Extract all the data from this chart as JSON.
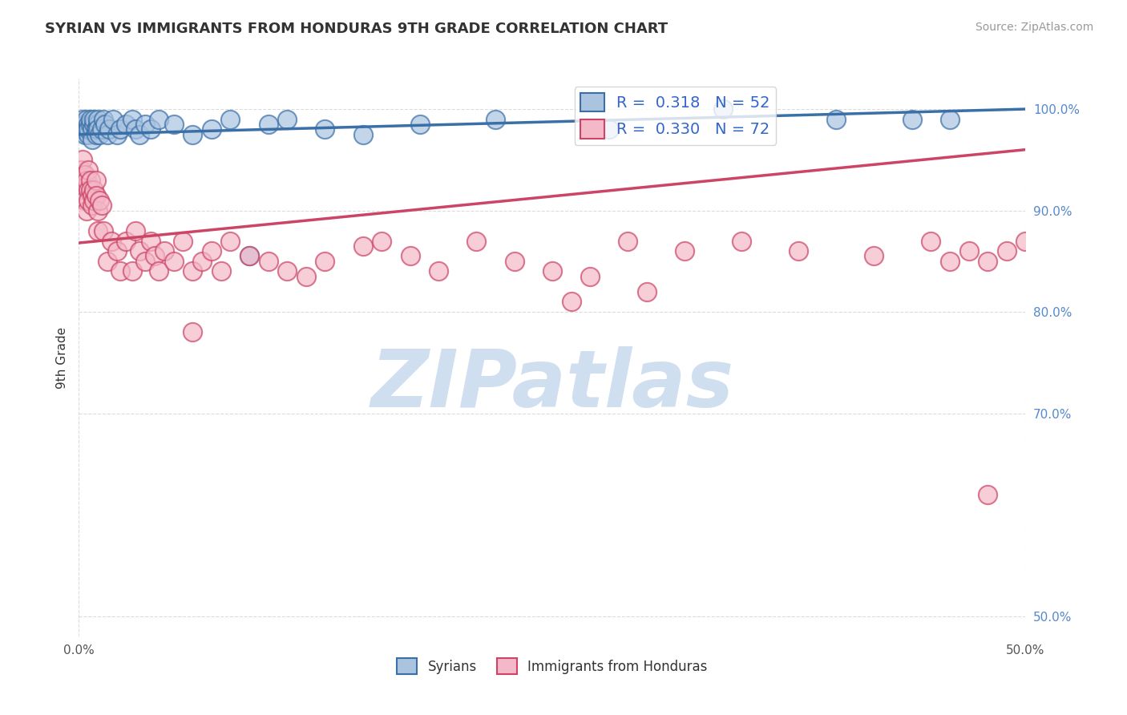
{
  "title": "SYRIAN VS IMMIGRANTS FROM HONDURAS 9TH GRADE CORRELATION CHART",
  "source_text": "Source: ZipAtlas.com",
  "ylabel": "9th Grade",
  "xlim": [
    0.0,
    0.5
  ],
  "ylim": [
    0.48,
    1.03
  ],
  "xtick_labels": [
    "0.0%",
    "50.0%"
  ],
  "xtick_positions": [
    0.0,
    0.5
  ],
  "ytick_labels": [
    "50.0%",
    "70.0%",
    "80.0%",
    "90.0%",
    "100.0%"
  ],
  "ytick_positions": [
    0.5,
    0.7,
    0.8,
    0.9,
    1.0
  ],
  "blue_R": "0.318",
  "blue_N": 52,
  "pink_R": "0.330",
  "pink_N": 72,
  "blue_color": "#aac4e0",
  "pink_color": "#f4b8c8",
  "blue_line_color": "#3a6fa8",
  "pink_line_color": "#cc4466",
  "watermark_text": "ZIPatlas",
  "watermark_color": "#d0dff0",
  "legend_label_blue": "Syrians",
  "legend_label_pink": "Immigrants from Honduras",
  "blue_points_x": [
    0.001,
    0.002,
    0.003,
    0.003,
    0.004,
    0.004,
    0.005,
    0.005,
    0.005,
    0.006,
    0.006,
    0.007,
    0.007,
    0.008,
    0.008,
    0.009,
    0.009,
    0.01,
    0.01,
    0.01,
    0.011,
    0.012,
    0.013,
    0.014,
    0.015,
    0.016,
    0.018,
    0.02,
    0.022,
    0.025,
    0.028,
    0.03,
    0.032,
    0.035,
    0.038,
    0.042,
    0.05,
    0.06,
    0.07,
    0.08,
    0.09,
    0.1,
    0.11,
    0.13,
    0.15,
    0.18,
    0.22,
    0.28,
    0.34,
    0.4,
    0.44,
    0.46
  ],
  "blue_points_y": [
    0.98,
    0.99,
    0.985,
    0.975,
    0.98,
    0.99,
    0.985,
    0.975,
    0.98,
    0.985,
    0.99,
    0.98,
    0.97,
    0.985,
    0.99,
    0.98,
    0.975,
    0.985,
    0.99,
    0.98,
    0.975,
    0.98,
    0.99,
    0.985,
    0.975,
    0.98,
    0.99,
    0.975,
    0.98,
    0.985,
    0.99,
    0.98,
    0.975,
    0.985,
    0.98,
    0.99,
    0.985,
    0.975,
    0.98,
    0.99,
    0.855,
    0.985,
    0.99,
    0.98,
    0.975,
    0.985,
    0.99,
    0.98,
    1.0,
    0.99,
    0.99,
    0.99
  ],
  "pink_points_x": [
    0.001,
    0.002,
    0.002,
    0.003,
    0.003,
    0.004,
    0.004,
    0.004,
    0.005,
    0.005,
    0.005,
    0.006,
    0.006,
    0.007,
    0.007,
    0.008,
    0.008,
    0.009,
    0.009,
    0.01,
    0.01,
    0.011,
    0.012,
    0.013,
    0.015,
    0.017,
    0.02,
    0.022,
    0.025,
    0.028,
    0.03,
    0.032,
    0.035,
    0.038,
    0.04,
    0.042,
    0.045,
    0.05,
    0.055,
    0.06,
    0.065,
    0.07,
    0.075,
    0.08,
    0.09,
    0.1,
    0.11,
    0.12,
    0.13,
    0.15,
    0.16,
    0.175,
    0.19,
    0.21,
    0.23,
    0.25,
    0.27,
    0.29,
    0.32,
    0.35,
    0.38,
    0.42,
    0.45,
    0.46,
    0.47,
    0.48,
    0.49,
    0.5,
    0.26,
    0.3,
    0.06,
    0.48
  ],
  "pink_points_y": [
    0.94,
    0.92,
    0.95,
    0.935,
    0.91,
    0.925,
    0.9,
    0.93,
    0.92,
    0.94,
    0.91,
    0.93,
    0.92,
    0.915,
    0.905,
    0.91,
    0.92,
    0.93,
    0.915,
    0.88,
    0.9,
    0.91,
    0.905,
    0.88,
    0.85,
    0.87,
    0.86,
    0.84,
    0.87,
    0.84,
    0.88,
    0.86,
    0.85,
    0.87,
    0.855,
    0.84,
    0.86,
    0.85,
    0.87,
    0.84,
    0.85,
    0.86,
    0.84,
    0.87,
    0.855,
    0.85,
    0.84,
    0.835,
    0.85,
    0.865,
    0.87,
    0.855,
    0.84,
    0.87,
    0.85,
    0.84,
    0.835,
    0.87,
    0.86,
    0.87,
    0.86,
    0.855,
    0.87,
    0.85,
    0.86,
    0.85,
    0.86,
    0.87,
    0.81,
    0.82,
    0.78,
    0.62
  ],
  "blue_line_x0": 0.0,
  "blue_line_y0": 0.975,
  "blue_line_x1": 0.5,
  "blue_line_y1": 1.0,
  "pink_line_x0": 0.0,
  "pink_line_y0": 0.868,
  "pink_line_x1": 0.5,
  "pink_line_y1": 0.96
}
